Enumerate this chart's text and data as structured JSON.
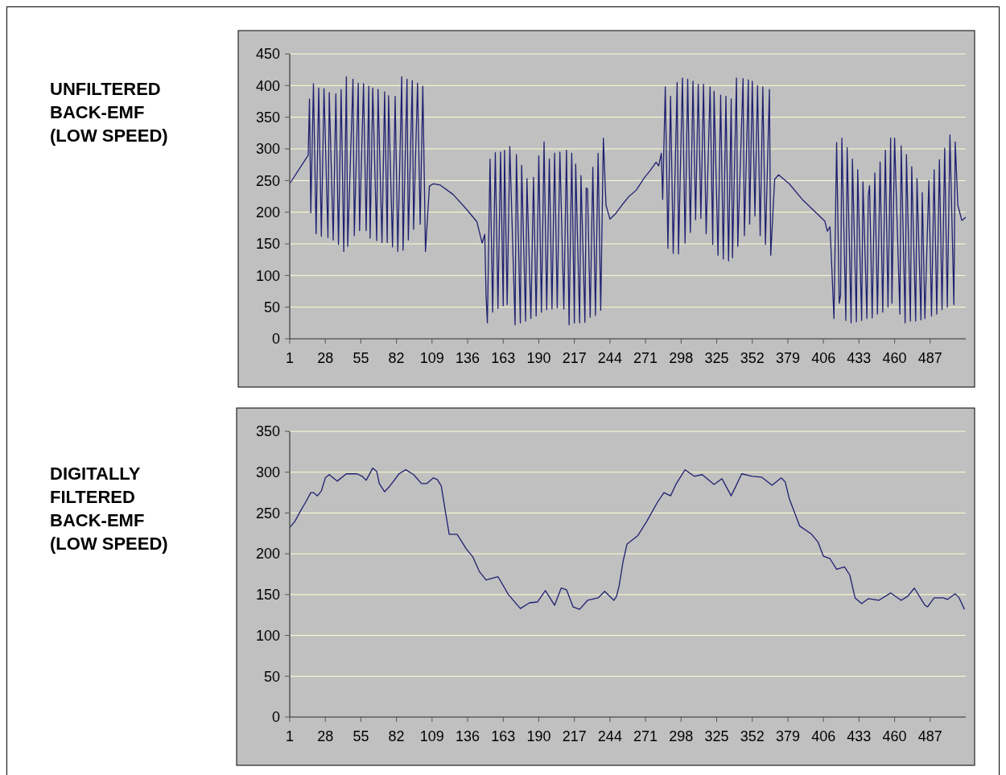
{
  "chart_data": [
    {
      "type": "line",
      "title": "UNFILTERED BACK-EMF (LOW SPEED)",
      "xlim": [
        1,
        514
      ],
      "xticks": [
        1,
        28,
        55,
        82,
        109,
        136,
        163,
        190,
        217,
        244,
        271,
        298,
        325,
        352,
        379,
        406,
        433,
        460,
        487
      ],
      "ylim": [
        0,
        450
      ],
      "yticks": [
        0,
        50,
        100,
        150,
        200,
        250,
        300,
        350,
        400,
        450
      ],
      "grid": "y",
      "marker": "none",
      "line_style": "solid",
      "series": [
        {
          "color": "#1f2070",
          "x": [
            1,
            15,
            16,
            17,
            19,
            21,
            23,
            25,
            27,
            30,
            31,
            34,
            36,
            38,
            40,
            42,
            44,
            45,
            49,
            50,
            53,
            54,
            57,
            59,
            61,
            62,
            64,
            67,
            68,
            71,
            73,
            75,
            76,
            79,
            81,
            83,
            86,
            87,
            90,
            91,
            94,
            95,
            98,
            100,
            102,
            104,
            107,
            110,
            115,
            125,
            135,
            143,
            147,
            149,
            150,
            151,
            153,
            155,
            157,
            159,
            161,
            163,
            164,
            166,
            168,
            172,
            173,
            176,
            177,
            180,
            181,
            184,
            186,
            188,
            190,
            192,
            194,
            196,
            198,
            200,
            202,
            204,
            206,
            209,
            211,
            213,
            215,
            217,
            218,
            221,
            222,
            225,
            226,
            227,
            229,
            231,
            233,
            235,
            237,
            239,
            241,
            244,
            248,
            253,
            258,
            264,
            270,
            275,
            279,
            281,
            283,
            284,
            286,
            288,
            290,
            292,
            295,
            296,
            299,
            301,
            303,
            305,
            307,
            309,
            311,
            313,
            315,
            317,
            320,
            322,
            323,
            326,
            328,
            330,
            332,
            334,
            336,
            337,
            340,
            341,
            345,
            346,
            349,
            350,
            352,
            354,
            356,
            358,
            360,
            362,
            365,
            366,
            369,
            372,
            380,
            390,
            400,
            407,
            409,
            411,
            414,
            416,
            418,
            419,
            420,
            423,
            424,
            427,
            428,
            431,
            432,
            435,
            436,
            439,
            440,
            441,
            443,
            445,
            447,
            449,
            451,
            453,
            455,
            457,
            458,
            460,
            464,
            465,
            468,
            469,
            472,
            473,
            476,
            477,
            480,
            481,
            483,
            486,
            488,
            490,
            492,
            494,
            496,
            498,
            500,
            502,
            505,
            506,
            508,
            511,
            514
          ],
          "values": [
            245,
            290,
            379,
            199,
            403,
            166,
            396,
            162,
            395,
            160,
            389,
            156,
            387,
            149,
            394,
            138,
            414,
            146,
            410,
            163,
            404,
            171,
            403,
            171,
            399,
            159,
            396,
            155,
            394,
            152,
            390,
            152,
            384,
            145,
            383,
            138,
            414,
            140,
            410,
            156,
            408,
            173,
            404,
            181,
            399,
            138,
            241,
            245,
            243,
            228,
            205,
            185,
            151,
            165,
            67,
            25,
            284,
            42,
            294,
            48,
            295,
            52,
            298,
            54,
            304,
            22,
            291,
            25,
            274,
            28,
            253,
            32,
            255,
            36,
            289,
            42,
            311,
            46,
            284,
            47,
            293,
            49,
            295,
            47,
            298,
            22,
            293,
            25,
            276,
            25,
            258,
            26,
            238,
            237,
            34,
            271,
            37,
            293,
            45,
            317,
            211,
            189,
            197,
            211,
            224,
            235,
            254,
            267,
            279,
            273,
            293,
            220,
            398,
            143,
            383,
            135,
            405,
            134,
            412,
            151,
            410,
            168,
            407,
            188,
            402,
            190,
            402,
            166,
            398,
            149,
            391,
            132,
            385,
            126,
            383,
            123,
            379,
            128,
            412,
            146,
            411,
            163,
            409,
            181,
            407,
            194,
            400,
            163,
            398,
            149,
            394,
            132,
            252,
            259,
            245,
            220,
            200,
            186,
            170,
            177,
            32,
            310,
            56,
            69,
            317,
            29,
            302,
            25,
            284,
            27,
            267,
            29,
            248,
            32,
            226,
            242,
            33,
            262,
            39,
            279,
            42,
            298,
            50,
            317,
            56,
            317,
            39,
            305,
            25,
            291,
            28,
            272,
            28,
            253,
            30,
            231,
            32,
            250,
            36,
            267,
            39,
            283,
            46,
            301,
            50,
            322,
            54,
            311,
            211,
            187,
            192
          ]
        }
      ]
    },
    {
      "type": "line",
      "title": "DIGITALLY FILTERED BACK-EMF (LOW SPEED)",
      "xlim": [
        1,
        514
      ],
      "xticks": [
        1,
        28,
        55,
        82,
        109,
        136,
        163,
        190,
        217,
        244,
        271,
        298,
        325,
        352,
        379,
        406,
        433,
        460,
        487
      ],
      "ylim": [
        0,
        350
      ],
      "yticks": [
        0,
        50,
        100,
        150,
        200,
        250,
        300,
        350
      ],
      "grid": "y",
      "marker": "none",
      "line_style": "solid",
      "series": [
        {
          "color": "#1f2070",
          "x": [
            1,
            5,
            9,
            13,
            17,
            19,
            22,
            25,
            28,
            31,
            37,
            44,
            52,
            56,
            59,
            64,
            67,
            69,
            73,
            77,
            84,
            89,
            95,
            101,
            105,
            110,
            113,
            116,
            119,
            122,
            128,
            135,
            140,
            145,
            150,
            159,
            167,
            176,
            183,
            189,
            195,
            202,
            207,
            211,
            216,
            221,
            227,
            235,
            240,
            247,
            249,
            251,
            254,
            257,
            265,
            272,
            280,
            285,
            290,
            294,
            301,
            308,
            314,
            323,
            329,
            336,
            344,
            352,
            359,
            367,
            374,
            377,
            380,
            388,
            397,
            402,
            406,
            411,
            416,
            422,
            426,
            430,
            435,
            440,
            448,
            457,
            465,
            470,
            475,
            483,
            485,
            490,
            497,
            500,
            506,
            509,
            513
          ],
          "values": [
            232,
            240,
            252,
            263,
            275,
            275,
            271,
            277,
            293,
            297,
            289,
            298,
            298,
            295,
            290,
            305,
            301,
            286,
            276,
            283,
            298,
            303,
            297,
            286,
            286,
            293,
            291,
            283,
            253,
            224,
            224,
            206,
            196,
            178,
            168,
            172,
            150,
            133,
            140,
            141,
            155,
            137,
            158,
            156,
            135,
            132,
            143,
            146,
            154,
            143,
            148,
            161,
            191,
            212,
            222,
            240,
            263,
            275,
            271,
            285,
            303,
            295,
            297,
            285,
            292,
            271,
            298,
            295,
            294,
            284,
            293,
            288,
            268,
            234,
            224,
            214,
            197,
            194,
            181,
            184,
            174,
            146,
            139,
            145,
            143,
            152,
            143,
            148,
            158,
            137,
            135,
            146,
            146,
            144,
            151,
            146,
            132
          ]
        }
      ]
    }
  ]
}
